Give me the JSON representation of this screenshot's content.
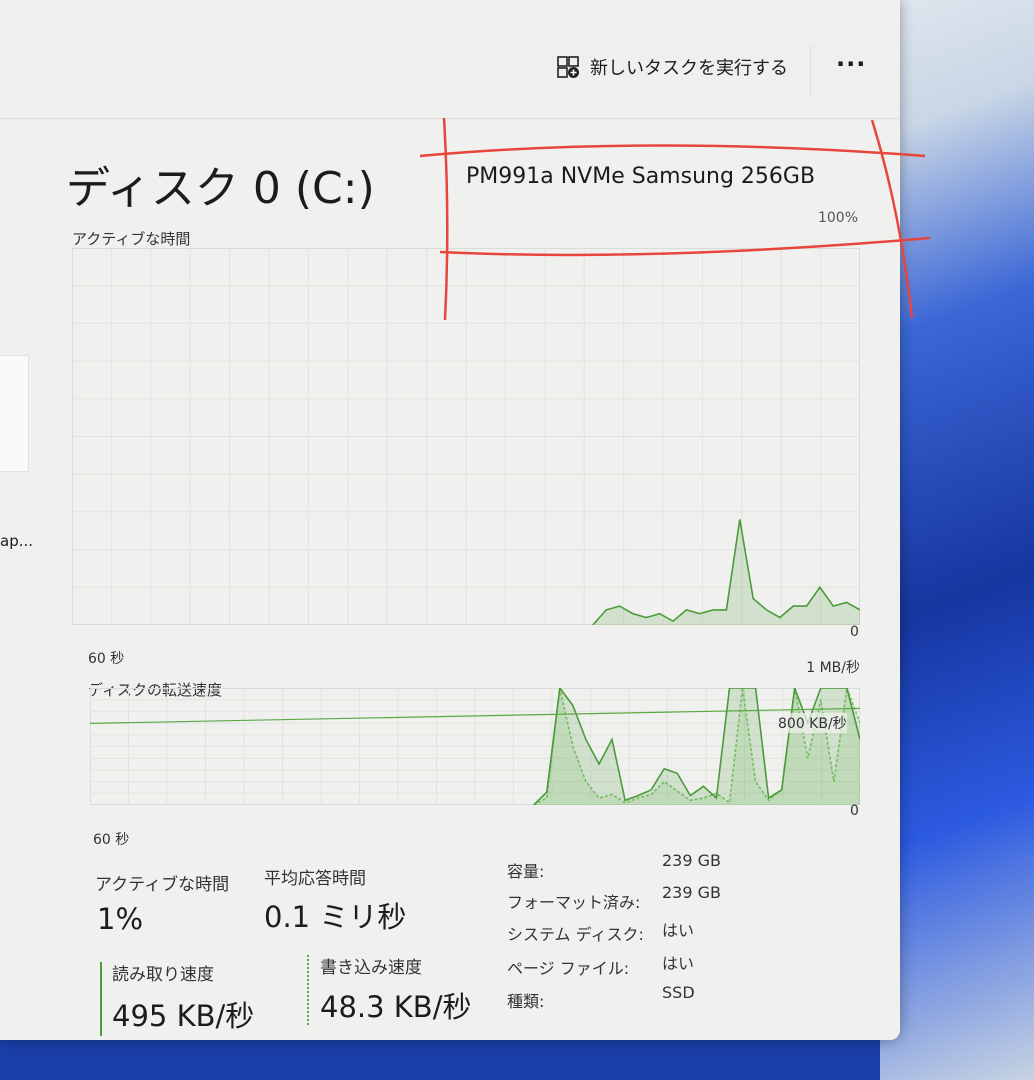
{
  "toolbar": {
    "new_task_label": "新しいタスクを実行する",
    "new_task_icon": "run-task-icon",
    "more_label": "···"
  },
  "sidebar": {
    "truncated_item": "ap..."
  },
  "disk": {
    "title": "ディスク 0 (C:)",
    "model": "PM991a NVMe Samsung 256GB",
    "active_chart_max": "100%"
  },
  "active_chart": {
    "label": "アクティブな時間",
    "zero": "0",
    "time_span": "60 秒",
    "values": [
      0,
      0,
      0,
      0,
      0,
      0,
      0,
      0,
      0,
      0,
      0,
      0,
      0,
      0,
      0,
      0,
      0,
      0,
      0,
      0,
      0,
      0,
      0,
      0,
      0,
      0,
      0,
      0,
      0,
      0,
      0,
      0,
      0,
      0,
      0,
      0,
      0,
      0,
      0,
      0,
      4,
      5,
      3,
      2,
      3,
      1,
      4,
      3,
      4,
      4,
      28,
      7,
      4,
      2,
      5,
      5,
      10,
      5,
      6,
      4
    ],
    "color": "#4d9a3a"
  },
  "transfer_chart": {
    "label": "ディスクの転送速度",
    "max": "1 MB/秒",
    "ref_label": "800 KB/秒",
    "ref_value": 800,
    "zero": "0",
    "time_span": "60 秒",
    "ymax": 1000,
    "read": [
      0,
      0,
      0,
      0,
      0,
      0,
      0,
      0,
      0,
      0,
      0,
      0,
      0,
      0,
      0,
      0,
      0,
      0,
      0,
      0,
      0,
      0,
      0,
      0,
      0,
      0,
      0,
      0,
      0,
      0,
      0,
      0,
      0,
      0,
      0,
      110,
      1000,
      850,
      560,
      350,
      560,
      40,
      80,
      130,
      310,
      270,
      80,
      160,
      60,
      1000,
      1000,
      1000,
      60,
      130,
      1000,
      700,
      1000,
      1000,
      1000,
      560
    ],
    "write": [
      0,
      0,
      0,
      0,
      0,
      0,
      0,
      0,
      0,
      0,
      0,
      0,
      0,
      0,
      0,
      0,
      0,
      0,
      0,
      0,
      0,
      0,
      0,
      0,
      0,
      0,
      0,
      0,
      0,
      0,
      0,
      0,
      0,
      0,
      0,
      60,
      1000,
      500,
      200,
      60,
      90,
      20,
      60,
      90,
      200,
      120,
      40,
      60,
      100,
      20,
      1000,
      200,
      40,
      130,
      1000,
      400,
      900,
      200,
      1000,
      700
    ],
    "color": "#4d9a3a"
  },
  "stats": {
    "active_time": {
      "label": "アクティブな時間",
      "value": "1%"
    },
    "avg_response": {
      "label": "平均応答時間",
      "value": "0.1 ミリ秒"
    },
    "read_speed": {
      "label": "読み取り速度",
      "value": "495 KB/秒"
    },
    "write_speed": {
      "label": "書き込み速度",
      "value": "48.3 KB/秒"
    }
  },
  "properties": [
    {
      "key": "容量:",
      "value": "239 GB"
    },
    {
      "key": "フォーマット済み:",
      "value": "239 GB"
    },
    {
      "key": "システム ディスク:",
      "value": "はい"
    },
    {
      "key": "ページ ファイル:",
      "value": "はい"
    },
    {
      "key": "種類:",
      "value": "SSD"
    }
  ],
  "annotation_color": "#e8463c"
}
